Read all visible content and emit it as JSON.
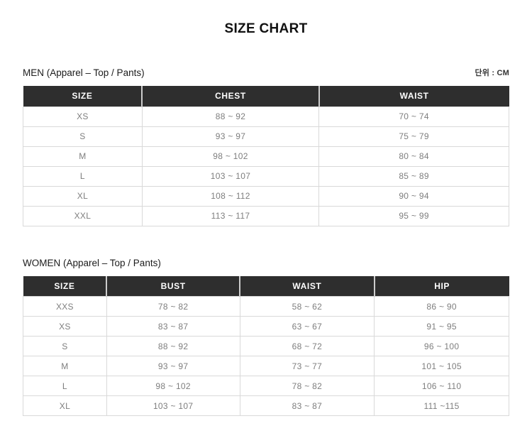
{
  "page": {
    "title": "SIZE CHART",
    "unit_label": "단위 : CM"
  },
  "men": {
    "section_label": "MEN (Apparel – Top / Pants)",
    "headers": [
      "SIZE",
      "CHEST",
      "WAIST"
    ],
    "rows": [
      [
        "XS",
        "88 ~ 92",
        "70 ~ 74"
      ],
      [
        "S",
        "93 ~ 97",
        "75 ~ 79"
      ],
      [
        "M",
        "98 ~ 102",
        "80 ~ 84"
      ],
      [
        "L",
        "103 ~ 107",
        "85 ~ 89"
      ],
      [
        "XL",
        "108 ~ 112",
        "90 ~ 94"
      ],
      [
        "XXL",
        "113 ~ 117",
        "95 ~ 99"
      ]
    ]
  },
  "women": {
    "section_label": "WOMEN (Apparel – Top / Pants)",
    "headers": [
      "SIZE",
      "BUST",
      "WAIST",
      "HIP"
    ],
    "rows": [
      [
        "XXS",
        "78 ~ 82",
        "58 ~ 62",
        "86 ~ 90"
      ],
      [
        "XS",
        "83 ~ 87",
        "63 ~ 67",
        "91 ~ 95"
      ],
      [
        "S",
        "88 ~ 92",
        "68 ~ 72",
        "96 ~ 100"
      ],
      [
        "M",
        "93 ~ 97",
        "73 ~ 77",
        "101 ~ 105"
      ],
      [
        "L",
        "98 ~ 102",
        "78 ~ 82",
        "106 ~ 110"
      ],
      [
        "XL",
        "103 ~ 107",
        "83 ~ 87",
        "111 ~115"
      ]
    ]
  },
  "colors": {
    "header_bg": "#2e2e2e",
    "header_text": "#ffffff",
    "cell_text": "#7e7e7e",
    "border": "#d9d9d9",
    "header_divider": "#cccccc"
  }
}
